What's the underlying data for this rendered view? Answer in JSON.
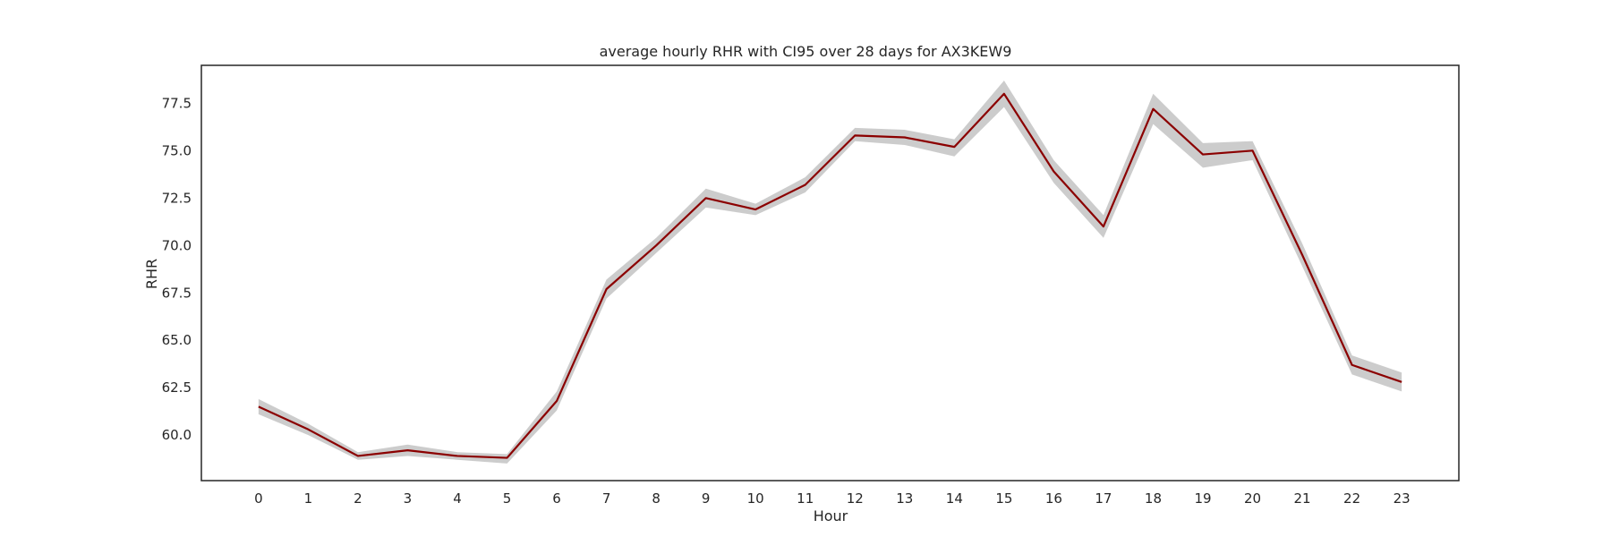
{
  "chart_data": {
    "type": "line",
    "title": "average hourly RHR with CI95 over 28 days for AX3KEW9",
    "xlabel": "Hour",
    "ylabel": "RHR",
    "x": [
      0,
      1,
      2,
      3,
      4,
      5,
      6,
      7,
      8,
      9,
      10,
      11,
      12,
      13,
      14,
      15,
      16,
      17,
      18,
      19,
      20,
      21,
      22,
      23
    ],
    "x_ticks": [
      "0",
      "1",
      "2",
      "3",
      "4",
      "5",
      "6",
      "7",
      "8",
      "9",
      "10",
      "11",
      "12",
      "13",
      "14",
      "15",
      "16",
      "17",
      "18",
      "19",
      "20",
      "21",
      "22",
      "23"
    ],
    "y_ticks": [
      "60.0",
      "62.5",
      "65.0",
      "67.5",
      "70.0",
      "72.5",
      "75.0",
      "77.5"
    ],
    "ylim": [
      57.6,
      79.5
    ],
    "xlim": [
      -1.15,
      24.15
    ],
    "grid": false,
    "series": [
      {
        "values": [
          61.5,
          60.3,
          58.9,
          59.2,
          58.9,
          58.8,
          61.8,
          67.7,
          70.0,
          72.5,
          71.9,
          73.2,
          75.8,
          75.7,
          75.2,
          78.0,
          73.9,
          71.0,
          77.2,
          74.8,
          75.0,
          69.5,
          63.7,
          62.8
        ],
        "ci_lower": [
          61.1,
          60.0,
          58.7,
          58.9,
          58.7,
          58.5,
          61.3,
          67.2,
          69.6,
          72.0,
          71.6,
          72.8,
          75.5,
          75.3,
          74.7,
          77.3,
          73.3,
          70.4,
          76.4,
          74.1,
          74.5,
          68.9,
          63.2,
          62.3
        ],
        "ci_upper": [
          61.9,
          60.6,
          59.1,
          59.5,
          59.1,
          59.0,
          62.3,
          68.2,
          70.4,
          73.0,
          72.2,
          73.6,
          76.2,
          76.1,
          75.6,
          78.7,
          74.5,
          71.6,
          78.0,
          75.4,
          75.5,
          70.1,
          64.2,
          63.3
        ]
      }
    ],
    "colors": {
      "line": "#8b0000",
      "ci_band": "#cccccc",
      "axis": "#262626"
    }
  }
}
